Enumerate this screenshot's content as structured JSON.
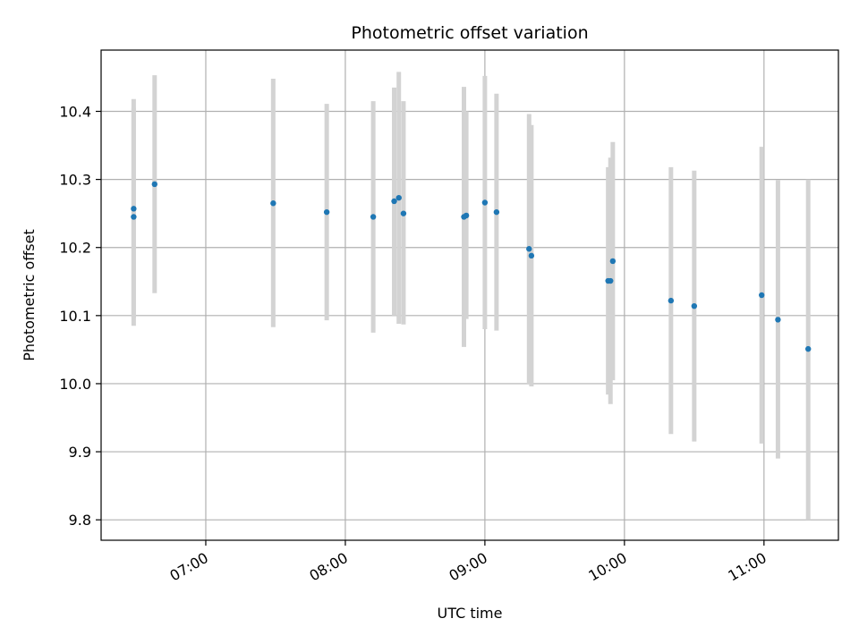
{
  "chart_data": {
    "type": "scatter",
    "title": "Photometric offset variation",
    "xlabel": "UTC time",
    "ylabel": "Photometric offset",
    "x_unit": "UTC time (HH:MM)",
    "xlim": [
      "06:15",
      "11:32"
    ],
    "ylim": [
      9.77,
      10.49
    ],
    "x_ticks": [
      "07:00",
      "08:00",
      "09:00",
      "10:00",
      "11:00"
    ],
    "y_ticks": [
      9.8,
      9.9,
      10.0,
      10.1,
      10.2,
      10.3,
      10.4
    ],
    "y_tick_labels": [
      "9.8",
      "9.9",
      "10.0",
      "10.1",
      "10.2",
      "10.3",
      "10.4"
    ],
    "grid": true,
    "legend": "none",
    "colors": {
      "point": "#1f77b4",
      "errorbar": "#d3d3d3",
      "grid": "#b0b0b0"
    },
    "points": [
      {
        "time": "06:29",
        "offset": 10.245,
        "err_low": 10.085,
        "err_high": 10.405
      },
      {
        "time": "06:29",
        "offset": 10.257,
        "err_low": 10.097,
        "err_high": 10.418
      },
      {
        "time": "06:38",
        "offset": 10.293,
        "err_low": 10.133,
        "err_high": 10.453
      },
      {
        "time": "07:29",
        "offset": 10.265,
        "err_low": 10.083,
        "err_high": 10.448
      },
      {
        "time": "07:52",
        "offset": 10.252,
        "err_low": 10.093,
        "err_high": 10.411
      },
      {
        "time": "08:12",
        "offset": 10.245,
        "err_low": 10.075,
        "err_high": 10.415
      },
      {
        "time": "08:21",
        "offset": 10.268,
        "err_low": 10.1,
        "err_high": 10.435
      },
      {
        "time": "08:23",
        "offset": 10.273,
        "err_low": 10.088,
        "err_high": 10.458
      },
      {
        "time": "08:25",
        "offset": 10.25,
        "err_low": 10.087,
        "err_high": 10.415
      },
      {
        "time": "08:51",
        "offset": 10.245,
        "err_low": 10.054,
        "err_high": 10.436
      },
      {
        "time": "08:52",
        "offset": 10.247,
        "err_low": 10.095,
        "err_high": 10.4
      },
      {
        "time": "09:00",
        "offset": 10.266,
        "err_low": 10.08,
        "err_high": 10.452
      },
      {
        "time": "09:05",
        "offset": 10.252,
        "err_low": 10.078,
        "err_high": 10.426
      },
      {
        "time": "09:19",
        "offset": 10.198,
        "err_low": 10.0,
        "err_high": 10.396
      },
      {
        "time": "09:20",
        "offset": 10.188,
        "err_low": 9.996,
        "err_high": 10.38
      },
      {
        "time": "09:53",
        "offset": 10.151,
        "err_low": 9.984,
        "err_high": 10.318
      },
      {
        "time": "09:54",
        "offset": 10.151,
        "err_low": 9.97,
        "err_high": 10.332
      },
      {
        "time": "09:55",
        "offset": 10.18,
        "err_low": 10.005,
        "err_high": 10.355
      },
      {
        "time": "10:20",
        "offset": 10.122,
        "err_low": 9.926,
        "err_high": 10.318
      },
      {
        "time": "10:30",
        "offset": 10.114,
        "err_low": 9.915,
        "err_high": 10.313
      },
      {
        "time": "10:59",
        "offset": 10.13,
        "err_low": 9.912,
        "err_high": 10.348
      },
      {
        "time": "11:06",
        "offset": 10.094,
        "err_low": 9.89,
        "err_high": 10.299
      },
      {
        "time": "11:19",
        "offset": 10.051,
        "err_low": 9.8,
        "err_high": 10.3
      }
    ]
  }
}
